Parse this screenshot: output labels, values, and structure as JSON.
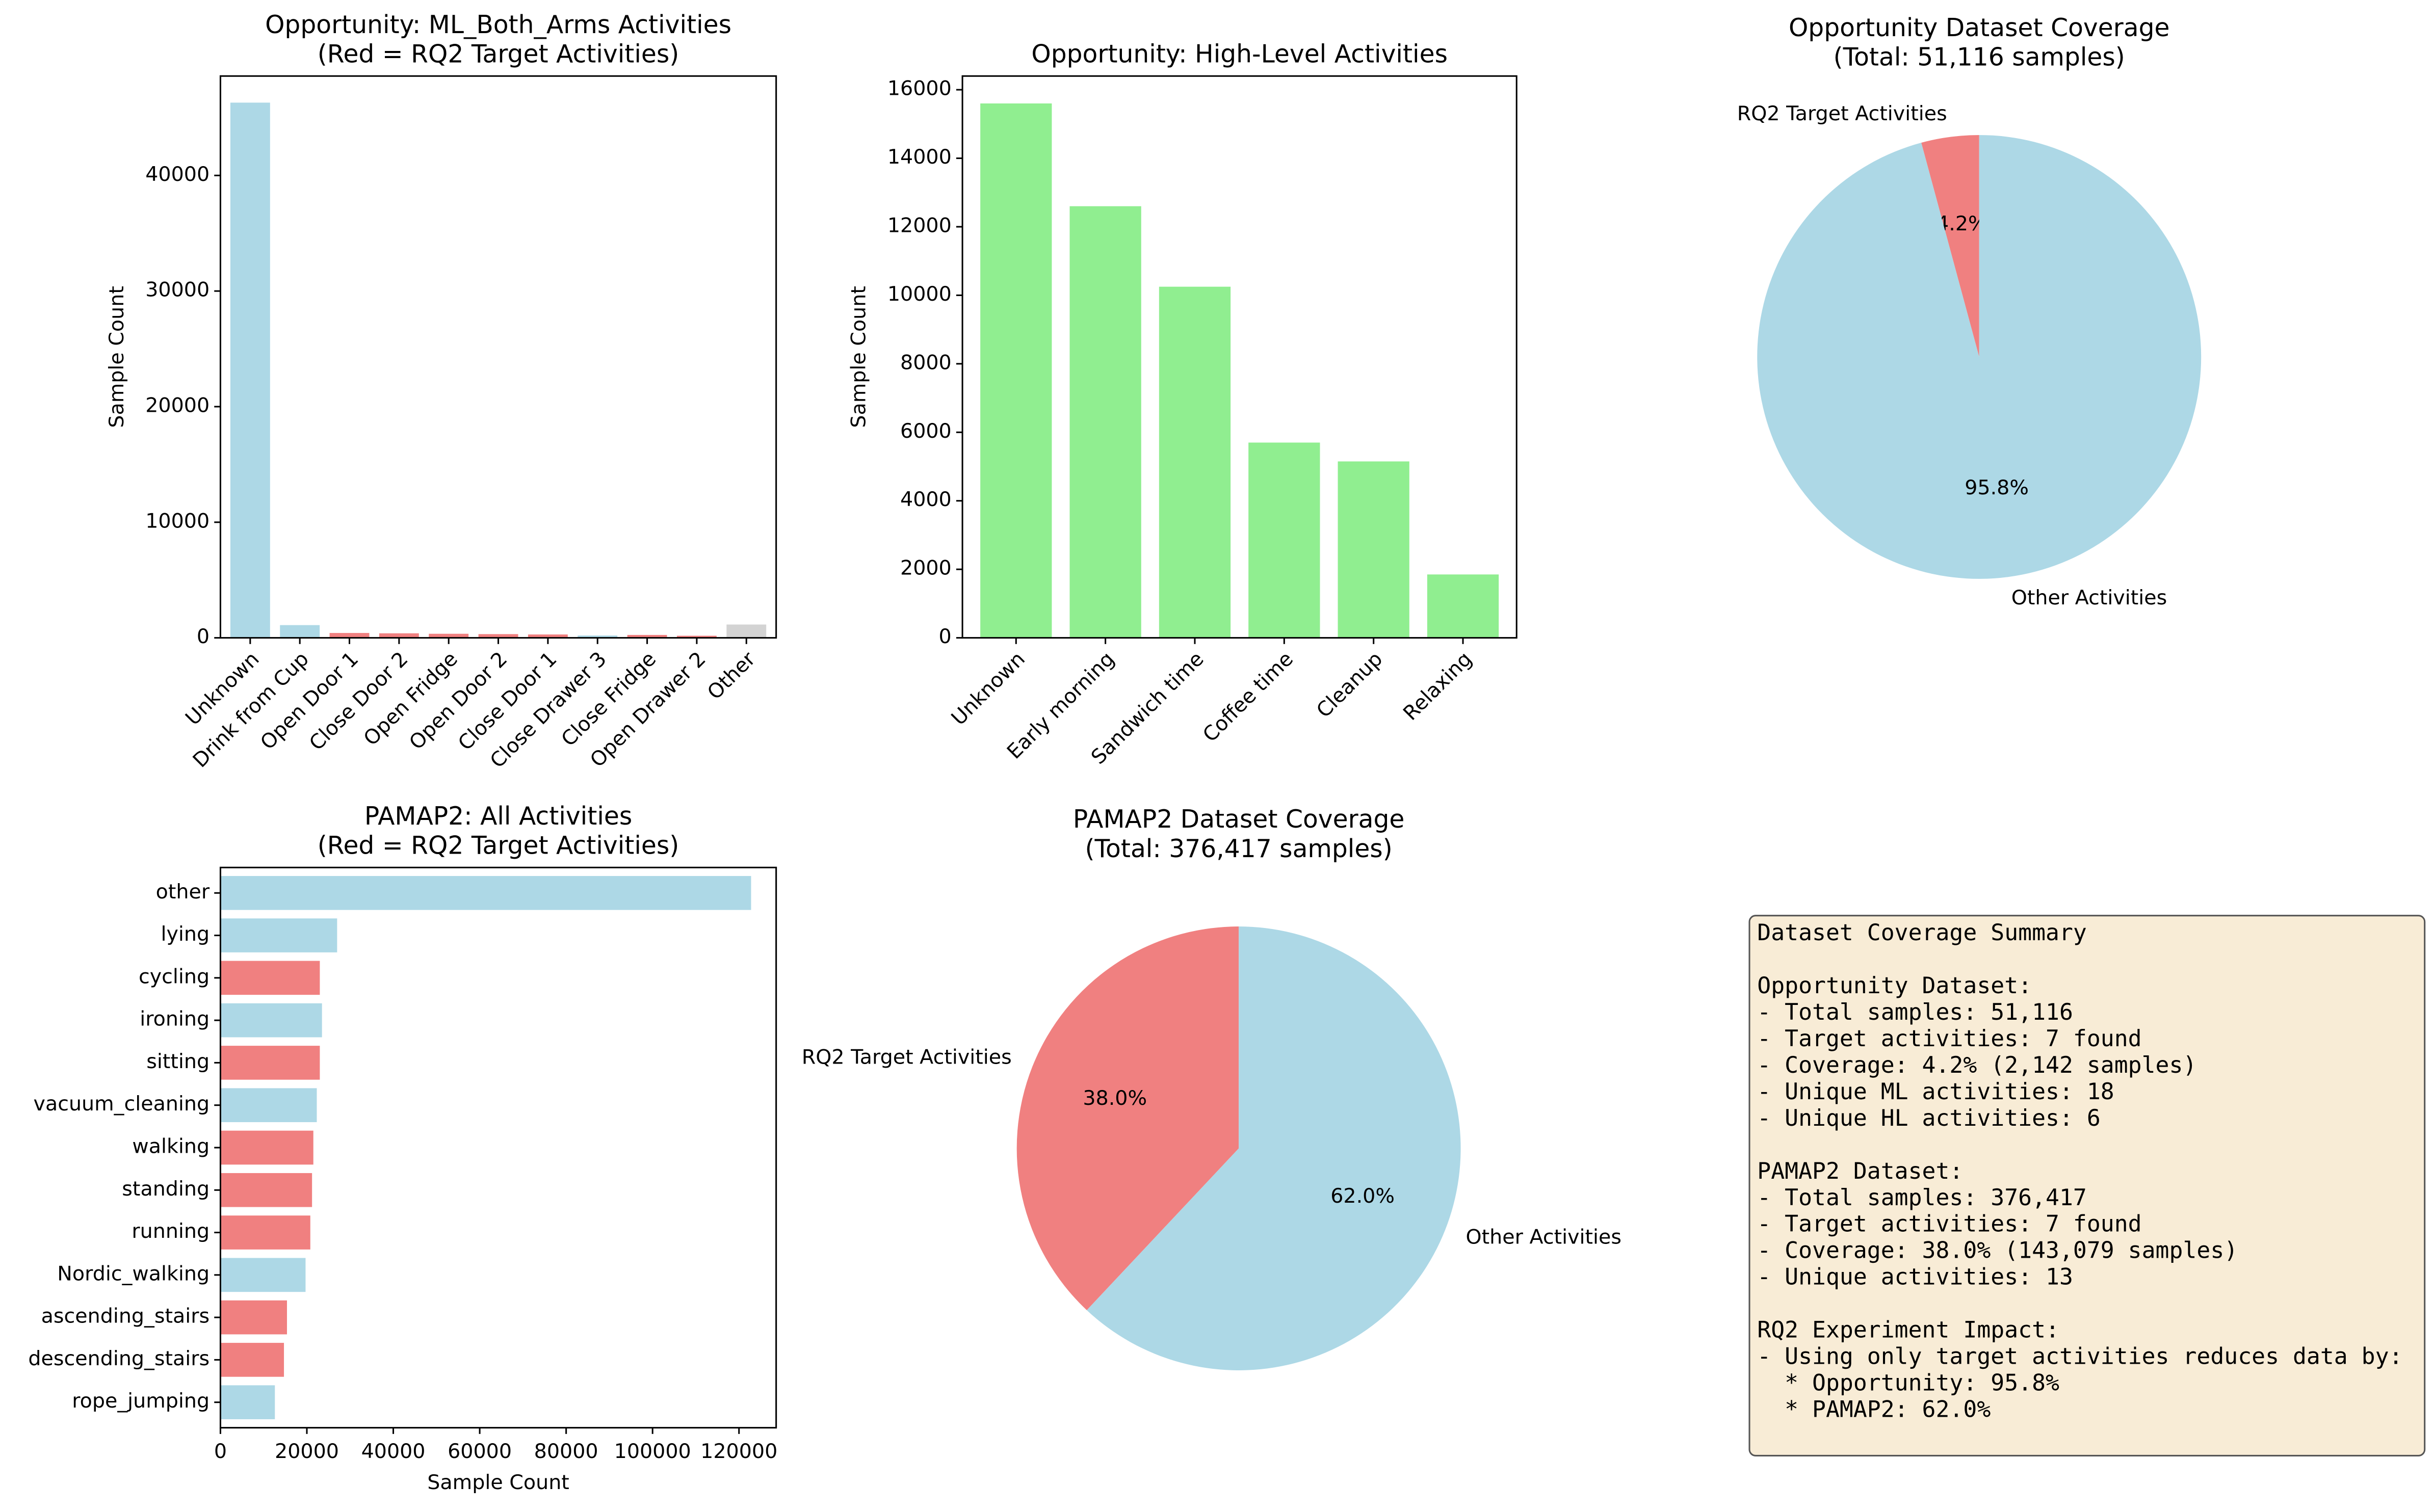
{
  "chart_data": [
    {
      "type": "bar",
      "title": [
        "Opportunity: ML_Both_Arms Activities",
        "(Red = RQ2 Target Activities)"
      ],
      "ylabel": "Sample Count",
      "categories": [
        "Unknown",
        "Drink from Cup",
        "Open Door 1",
        "Close Door 2",
        "Open Fridge",
        "Open Door 2",
        "Close Door 1",
        "Close Drawer 3",
        "Close Fridge",
        "Open Drawer 2",
        "Other"
      ],
      "values": [
        46300,
        1100,
        420,
        390,
        350,
        320,
        290,
        200,
        250,
        180,
        1150
      ],
      "colors": [
        "#add8e6",
        "#add8e6",
        "#f08080",
        "#f08080",
        "#f08080",
        "#f08080",
        "#f08080",
        "#add8e6",
        "#f08080",
        "#f08080",
        "#d3d3d3"
      ],
      "ylim": [
        0,
        48600
      ],
      "yticks": [
        0,
        10000,
        20000,
        30000,
        40000
      ]
    },
    {
      "type": "bar",
      "title": [
        "Opportunity: High-Level Activities"
      ],
      "ylabel": "Sample Count",
      "categories": [
        "Unknown",
        "Early morning",
        "Sandwich time",
        "Coffee time",
        "Cleanup",
        "Relaxing"
      ],
      "values": [
        15600,
        12600,
        10250,
        5700,
        5150,
        1850
      ],
      "color": "#90ee90",
      "ylim": [
        0,
        16400
      ],
      "yticks": [
        0,
        2000,
        4000,
        6000,
        8000,
        10000,
        12000,
        14000,
        16000
      ]
    },
    {
      "type": "pie",
      "title": [
        "Opportunity Dataset Coverage",
        "(Total: 51,116 samples)"
      ],
      "labels": [
        "RQ2 Target Activities",
        "Other Activities"
      ],
      "values": [
        4.2,
        95.8
      ],
      "value_labels": [
        "4.2%",
        "95.8%"
      ],
      "colors": [
        "#f08080",
        "#add8e6"
      ]
    },
    {
      "type": "barh",
      "title": [
        "PAMAP2: All Activities",
        "(Red = RQ2 Target Activities)"
      ],
      "xlabel": "Sample Count",
      "categories": [
        "other",
        "lying",
        "cycling",
        "ironing",
        "sitting",
        "vacuum_cleaning",
        "walking",
        "standing",
        "running",
        "Nordic_walking",
        "ascending_stairs",
        "descending_stairs",
        "rope_jumping"
      ],
      "values": [
        122800,
        27000,
        23000,
        23500,
        23000,
        22300,
        21500,
        21200,
        20800,
        19700,
        15400,
        14700,
        12600
      ],
      "colors": [
        "#add8e6",
        "#add8e6",
        "#f08080",
        "#add8e6",
        "#f08080",
        "#add8e6",
        "#f08080",
        "#f08080",
        "#f08080",
        "#add8e6",
        "#f08080",
        "#f08080",
        "#add8e6"
      ],
      "xlim": [
        0,
        128600
      ],
      "xticks": [
        0,
        20000,
        40000,
        60000,
        80000,
        100000,
        120000
      ]
    },
    {
      "type": "pie",
      "title": [
        "PAMAP2 Dataset Coverage",
        "(Total: 376,417 samples)"
      ],
      "labels": [
        "RQ2 Target Activities",
        "Other Activities"
      ],
      "values": [
        38.0,
        62.0
      ],
      "value_labels": [
        "38.0%",
        "62.0%"
      ],
      "colors": [
        "#f08080",
        "#add8e6"
      ]
    }
  ],
  "summary": {
    "title": "Dataset Coverage Summary",
    "sections": [
      {
        "heading": "Opportunity Dataset:",
        "lines": [
          "- Total samples: 51,116",
          "- Target activities: 7 found",
          "- Coverage: 4.2% (2,142 samples)",
          "- Unique ML activities: 18",
          "- Unique HL activities: 6"
        ]
      },
      {
        "heading": "PAMAP2 Dataset:",
        "lines": [
          "- Total samples: 376,417",
          "- Target activities: 7 found",
          "- Coverage: 38.0% (143,079 samples)",
          "- Unique activities: 13"
        ]
      },
      {
        "heading": "RQ2 Experiment Impact:",
        "lines": [
          "- Using only target activities reduces data by:",
          "  * Opportunity: 95.8%",
          "  * PAMAP2: 62.0%"
        ]
      }
    ]
  }
}
